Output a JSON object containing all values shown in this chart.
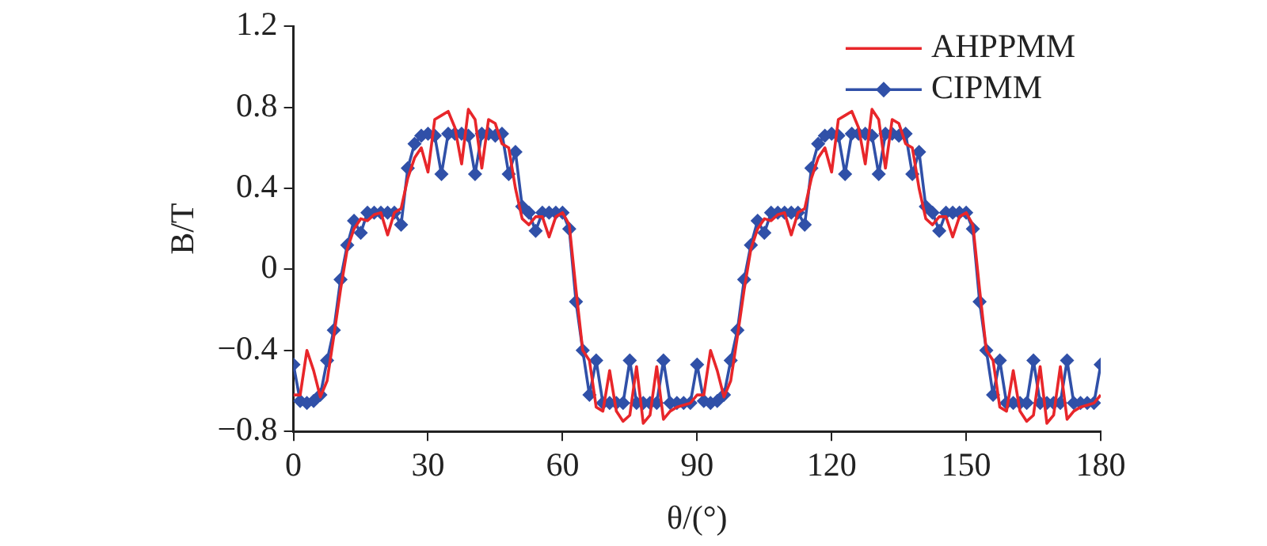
{
  "chart_data": {
    "type": "line",
    "xlabel": "θ/(°)",
    "ylabel": "B/T",
    "xlim": [
      0,
      180
    ],
    "xticks": [
      0,
      30,
      60,
      90,
      120,
      150,
      180
    ],
    "ylim": [
      -0.8,
      1.2
    ],
    "yticks": [
      {
        "value": -0.8,
        "label": "−0.8"
      },
      {
        "value": -0.4,
        "label": "−0.4"
      },
      0,
      0.4,
      0.8,
      1.2
    ],
    "grid": false,
    "legend": "top right",
    "series": [
      {
        "name": "AHPPMM",
        "color": "#e8262a",
        "marker": "none",
        "x": [
          0,
          1.5,
          3,
          4.5,
          6,
          7.5,
          9,
          10.5,
          12,
          13.5,
          15,
          16.5,
          18,
          19.5,
          21,
          22.5,
          24,
          25.5,
          27,
          28.5,
          30,
          31.5,
          33,
          34.5,
          36,
          37.5,
          39,
          40.5,
          42,
          43.5,
          45,
          46.5,
          48,
          49.5,
          51,
          52.5,
          54,
          55.5,
          57,
          58.5,
          60,
          61.5,
          63,
          64.5,
          66,
          67.5,
          69,
          70.5,
          72,
          73.5,
          75,
          76.5,
          78,
          79.5,
          81,
          82.5,
          84,
          85.5,
          87,
          88.5,
          90,
          91.5,
          93,
          94.5,
          96,
          97.5,
          99,
          100.5,
          102,
          103.5,
          105,
          106.5,
          108,
          109.5,
          111,
          112.5,
          114,
          115.5,
          117,
          118.5,
          120,
          121.5,
          123,
          124.5,
          126,
          127.5,
          129,
          130.5,
          132,
          133.5,
          135,
          136.5,
          138,
          139.5,
          141,
          142.5,
          144,
          145.5,
          147,
          148.5,
          150,
          151.5,
          153,
          154.5,
          156,
          157.5,
          159,
          160.5,
          162,
          163.5,
          165,
          166.5,
          168,
          169.5,
          171,
          172.5,
          174,
          175.5,
          177,
          178.5,
          180
        ],
        "values": [
          -0.62,
          -0.62,
          -0.4,
          -0.5,
          -0.63,
          -0.55,
          -0.33,
          -0.1,
          0.1,
          0.2,
          0.25,
          0.24,
          0.27,
          0.28,
          0.17,
          0.28,
          0.3,
          0.45,
          0.55,
          0.6,
          0.48,
          0.74,
          0.76,
          0.78,
          0.7,
          0.52,
          0.79,
          0.74,
          0.5,
          0.74,
          0.72,
          0.62,
          0.6,
          0.4,
          0.25,
          0.22,
          0.26,
          0.26,
          0.16,
          0.26,
          0.28,
          0.22,
          -0.1,
          -0.4,
          -0.45,
          -0.68,
          -0.7,
          -0.5,
          -0.7,
          -0.75,
          -0.72,
          -0.48,
          -0.76,
          -0.72,
          -0.48,
          -0.74,
          -0.7,
          -0.68,
          -0.67,
          -0.66,
          -0.62,
          -0.62,
          -0.4,
          -0.5,
          -0.63,
          -0.55,
          -0.33,
          -0.1,
          0.1,
          0.2,
          0.25,
          0.24,
          0.27,
          0.28,
          0.17,
          0.28,
          0.3,
          0.45,
          0.55,
          0.6,
          0.48,
          0.74,
          0.76,
          0.78,
          0.7,
          0.52,
          0.79,
          0.74,
          0.5,
          0.74,
          0.72,
          0.62,
          0.6,
          0.4,
          0.25,
          0.22,
          0.26,
          0.26,
          0.16,
          0.26,
          0.28,
          0.22,
          -0.1,
          -0.4,
          -0.45,
          -0.68,
          -0.7,
          -0.5,
          -0.7,
          -0.75,
          -0.72,
          -0.48,
          -0.76,
          -0.72,
          -0.48,
          -0.74,
          -0.7,
          -0.68,
          -0.67,
          -0.66,
          -0.62
        ]
      },
      {
        "name": "CIPMM",
        "color": "#3050a8",
        "marker": "diamond",
        "x": [
          0,
          1.5,
          3,
          4.5,
          6,
          7.5,
          9,
          10.5,
          12,
          13.5,
          15,
          16.5,
          18,
          19.5,
          21,
          22.5,
          24,
          25.5,
          27,
          28.5,
          30,
          31.5,
          33,
          34.5,
          36,
          37.5,
          39,
          40.5,
          42,
          43.5,
          45,
          46.5,
          48,
          49.5,
          51,
          52.5,
          54,
          55.5,
          57,
          58.5,
          60,
          61.5,
          63,
          64.5,
          66,
          67.5,
          69,
          70.5,
          72,
          73.5,
          75,
          76.5,
          78,
          79.5,
          81,
          82.5,
          84,
          85.5,
          87,
          88.5,
          90,
          91.5,
          93,
          94.5,
          96,
          97.5,
          99,
          100.5,
          102,
          103.5,
          105,
          106.5,
          108,
          109.5,
          111,
          112.5,
          114,
          115.5,
          117,
          118.5,
          120,
          121.5,
          123,
          124.5,
          126,
          127.5,
          129,
          130.5,
          132,
          133.5,
          135,
          136.5,
          138,
          139.5,
          141,
          142.5,
          144,
          145.5,
          147,
          148.5,
          150,
          151.5,
          153,
          154.5,
          156,
          157.5,
          159,
          160.5,
          162,
          163.5,
          165,
          166.5,
          168,
          169.5,
          171,
          172.5,
          174,
          175.5,
          177,
          178.5,
          180
        ],
        "values": [
          -0.47,
          -0.65,
          -0.66,
          -0.65,
          -0.62,
          -0.45,
          -0.3,
          -0.05,
          0.12,
          0.24,
          0.18,
          0.28,
          0.28,
          0.28,
          0.28,
          0.28,
          0.22,
          0.5,
          0.62,
          0.66,
          0.67,
          0.66,
          0.47,
          0.67,
          0.67,
          0.67,
          0.66,
          0.47,
          0.67,
          0.67,
          0.66,
          0.67,
          0.47,
          0.58,
          0.31,
          0.28,
          0.19,
          0.28,
          0.28,
          0.28,
          0.28,
          0.2,
          -0.16,
          -0.4,
          -0.62,
          -0.45,
          -0.66,
          -0.66,
          -0.66,
          -0.66,
          -0.45,
          -0.66,
          -0.66,
          -0.66,
          -0.66,
          -0.45,
          -0.66,
          -0.66,
          -0.66,
          -0.66,
          -0.47,
          -0.65,
          -0.66,
          -0.65,
          -0.62,
          -0.45,
          -0.3,
          -0.05,
          0.12,
          0.24,
          0.18,
          0.28,
          0.28,
          0.28,
          0.28,
          0.28,
          0.22,
          0.5,
          0.62,
          0.66,
          0.67,
          0.66,
          0.47,
          0.67,
          0.67,
          0.67,
          0.66,
          0.47,
          0.67,
          0.67,
          0.66,
          0.67,
          0.47,
          0.58,
          0.31,
          0.28,
          0.19,
          0.28,
          0.28,
          0.28,
          0.28,
          0.2,
          -0.16,
          -0.4,
          -0.62,
          -0.45,
          -0.66,
          -0.66,
          -0.66,
          -0.66,
          -0.45,
          -0.66,
          -0.66,
          -0.66,
          -0.66,
          -0.45,
          -0.66,
          -0.66,
          -0.66,
          -0.66,
          -0.47
        ]
      }
    ]
  }
}
